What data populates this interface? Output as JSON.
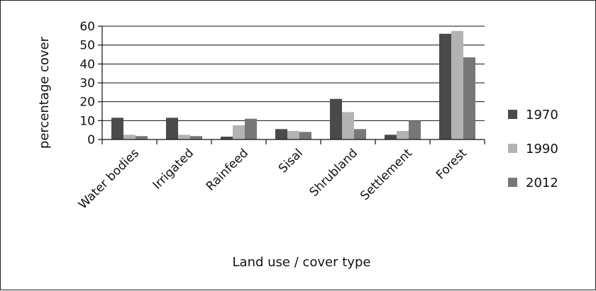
{
  "chart_data": {
    "type": "bar",
    "title": "",
    "xlabel": "Land use / cover type",
    "ylabel": "percentage cover",
    "ylim": [
      0,
      60
    ],
    "yticks": [
      0,
      10,
      20,
      30,
      40,
      50,
      60
    ],
    "grid": true,
    "legend_position": "right",
    "categories": [
      "Water bodies",
      "Irrigated",
      "Rainfeed",
      "Sisal",
      "Shrubland",
      "Settlement",
      "Forest"
    ],
    "series": [
      {
        "name": "1970",
        "color": "#4a4a4a",
        "values": [
          11.5,
          11.5,
          1.5,
          5.5,
          21.5,
          2.5,
          56
        ]
      },
      {
        "name": "1990",
        "color": "#b3b3b3",
        "values": [
          2.5,
          2.5,
          7.5,
          4.5,
          14.5,
          4.5,
          57.5
        ]
      },
      {
        "name": "2012",
        "color": "#777777",
        "values": [
          1.8,
          1.8,
          11,
          4,
          5.5,
          10,
          43.5
        ]
      }
    ]
  }
}
